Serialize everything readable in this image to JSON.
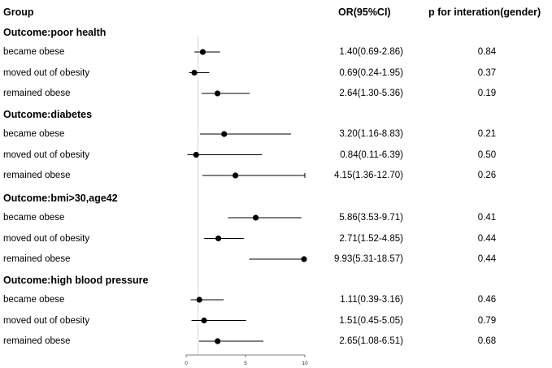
{
  "chart_data": {
    "type": "forest",
    "headers": {
      "group": "Group",
      "or": "OR(95%CI)",
      "p": "p for interation(gender)"
    },
    "x_axis": {
      "range": [
        0,
        10
      ],
      "ticks": [
        "0",
        "5",
        "10"
      ],
      "reference_line": 1
    },
    "groups": [
      {
        "title": "Outcome:poor health",
        "rows": [
          {
            "label": "became obese",
            "or": 1.4,
            "lo": 0.69,
            "hi": 2.86,
            "or_text": "1.40(0.69-2.86)",
            "p": "0.84"
          },
          {
            "label": "moved out of obesity",
            "or": 0.69,
            "lo": 0.24,
            "hi": 1.95,
            "or_text": "0.69(0.24-1.95)",
            "p": "0.37"
          },
          {
            "label": "remained obese",
            "or": 2.64,
            "lo": 1.3,
            "hi": 5.36,
            "or_text": "2.64(1.30-5.36)",
            "p": "0.19"
          }
        ]
      },
      {
        "title": "Outcome:diabetes",
        "rows": [
          {
            "label": "became obese",
            "or": 3.2,
            "lo": 1.16,
            "hi": 8.83,
            "or_text": "3.20(1.16-8.83)",
            "p": "0.21"
          },
          {
            "label": "moved out of obesity",
            "or": 0.84,
            "lo": 0.11,
            "hi": 6.39,
            "or_text": "0.84(0.11-6.39)",
            "p": "0.50"
          },
          {
            "label": "remained obese",
            "or": 4.15,
            "lo": 1.36,
            "hi": 12.7,
            "or_text": "4.15(1.36-12.70)",
            "p": "0.26"
          }
        ]
      },
      {
        "title": "Outcome:bmi>30,age42",
        "rows": [
          {
            "label": "became obese",
            "or": 5.86,
            "lo": 3.53,
            "hi": 9.71,
            "or_text": "5.86(3.53-9.71)",
            "p": "0.41"
          },
          {
            "label": "moved out of obesity",
            "or": 2.71,
            "lo": 1.52,
            "hi": 4.85,
            "or_text": "2.71(1.52-4.85)",
            "p": "0.44"
          },
          {
            "label": "remained obese",
            "or": 9.93,
            "lo": 5.31,
            "hi": 18.57,
            "or_text": "9.93(5.31-18.57)",
            "p": "0.44"
          }
        ]
      },
      {
        "title": "Outcome:high blood pressure",
        "rows": [
          {
            "label": "became obese",
            "or": 1.11,
            "lo": 0.39,
            "hi": 3.16,
            "or_text": "1.11(0.39-3.16)",
            "p": "0.46"
          },
          {
            "label": "moved out of obesity",
            "or": 1.51,
            "lo": 0.45,
            "hi": 5.05,
            "or_text": "1.51(0.45-5.05)",
            "p": "0.79"
          },
          {
            "label": "remained obese",
            "or": 2.65,
            "lo": 1.08,
            "hi": 6.51,
            "or_text": "2.65(1.08-6.51)",
            "p": "0.68"
          }
        ]
      }
    ]
  }
}
